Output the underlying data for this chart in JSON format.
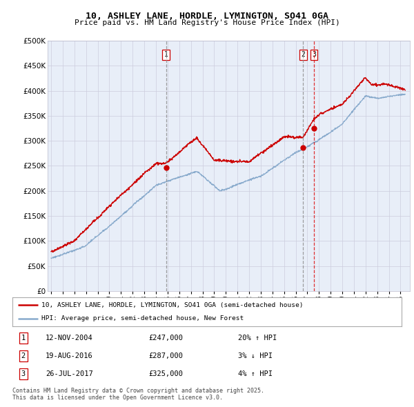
{
  "title": "10, ASHLEY LANE, HORDLE, LYMINGTON, SO41 0GA",
  "subtitle": "Price paid vs. HM Land Registry's House Price Index (HPI)",
  "ytick_vals": [
    0,
    50000,
    100000,
    150000,
    200000,
    250000,
    300000,
    350000,
    400000,
    450000,
    500000
  ],
  "xlim_start": 1994.7,
  "xlim_end": 2025.8,
  "ylim": [
    0,
    500000
  ],
  "sale1_x": 2004.87,
  "sale1_y": 247000,
  "sale1_label": "1",
  "sale1_line_color": "#888888",
  "sale1_line_style": "--",
  "sale2_x": 2016.63,
  "sale2_y": 287000,
  "sale2_label": "2",
  "sale2_line_color": "#888888",
  "sale2_line_style": "--",
  "sale3_x": 2017.57,
  "sale3_y": 325000,
  "sale3_label": "3",
  "sale3_line_color": "#dd0000",
  "sale3_line_style": "--",
  "red_line_color": "#cc0000",
  "blue_line_color": "#88aacc",
  "dot_color": "#cc0000",
  "grid_color": "#ccccdd",
  "background_color": "#ffffff",
  "plot_bg_color": "#e8eef8",
  "legend_label_red": "10, ASHLEY LANE, HORDLE, LYMINGTON, SO41 0GA (semi-detached house)",
  "legend_label_blue": "HPI: Average price, semi-detached house, New Forest",
  "footer": "Contains HM Land Registry data © Crown copyright and database right 2025.\nThis data is licensed under the Open Government Licence v3.0.",
  "xticks": [
    1995,
    1996,
    1997,
    1998,
    1999,
    2000,
    2001,
    2002,
    2003,
    2004,
    2005,
    2006,
    2007,
    2008,
    2009,
    2010,
    2011,
    2012,
    2013,
    2014,
    2015,
    2016,
    2017,
    2018,
    2019,
    2020,
    2021,
    2022,
    2023,
    2024,
    2025
  ]
}
